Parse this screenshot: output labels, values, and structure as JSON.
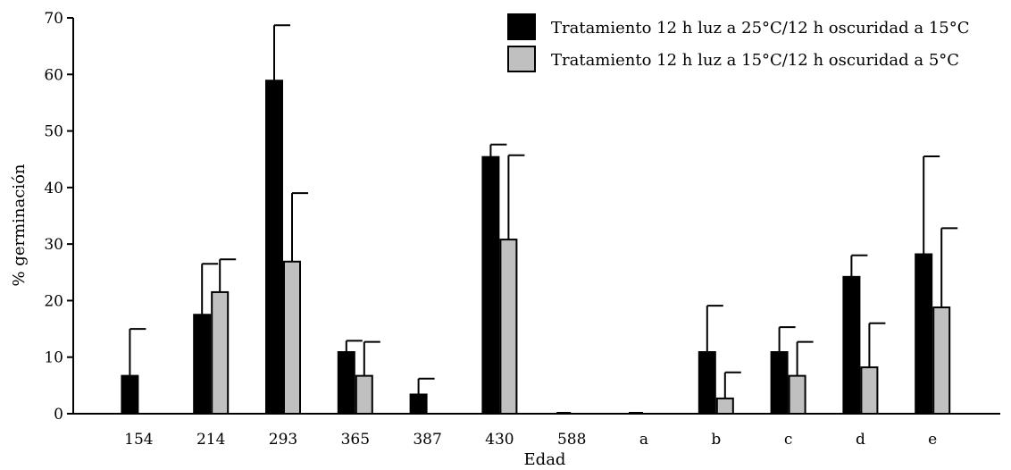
{
  "chart_data": {
    "type": "bar",
    "xlabel": "Edad",
    "ylabel": "% germinación",
    "ylim": [
      0,
      70
    ],
    "yticks": [
      0,
      10,
      20,
      30,
      40,
      50,
      60,
      70
    ],
    "grid": false,
    "legend_position": "top-right",
    "categories": [
      "154",
      "214",
      "293",
      "365",
      "387",
      "430",
      "588",
      "a",
      "b",
      "c",
      "d",
      "e"
    ],
    "series": [
      {
        "name": "Tratamiento 12 h luz a 25°C/12 h oscuridad a 15°C",
        "color": "#000000",
        "values": [
          6.7,
          17.5,
          58.9,
          10.9,
          3.4,
          45.4,
          0,
          0,
          10.9,
          10.9,
          24.2,
          28.2
        ],
        "errors": [
          8.3,
          9.0,
          9.8,
          2.0,
          2.8,
          2.2,
          0,
          0,
          8.2,
          4.4,
          3.8,
          17.3
        ]
      },
      {
        "name": "Tratamiento 12 h luz a 15°C/12 h oscuridad a 5°C",
        "color": "#c0c0c0",
        "values": [
          0,
          21.5,
          26.9,
          6.7,
          0,
          30.8,
          0,
          0,
          2.7,
          6.7,
          8.2,
          18.8
        ],
        "errors": [
          0,
          5.8,
          12.1,
          6.0,
          0,
          14.9,
          0,
          0,
          4.6,
          6.0,
          7.8,
          14.0
        ]
      }
    ]
  }
}
